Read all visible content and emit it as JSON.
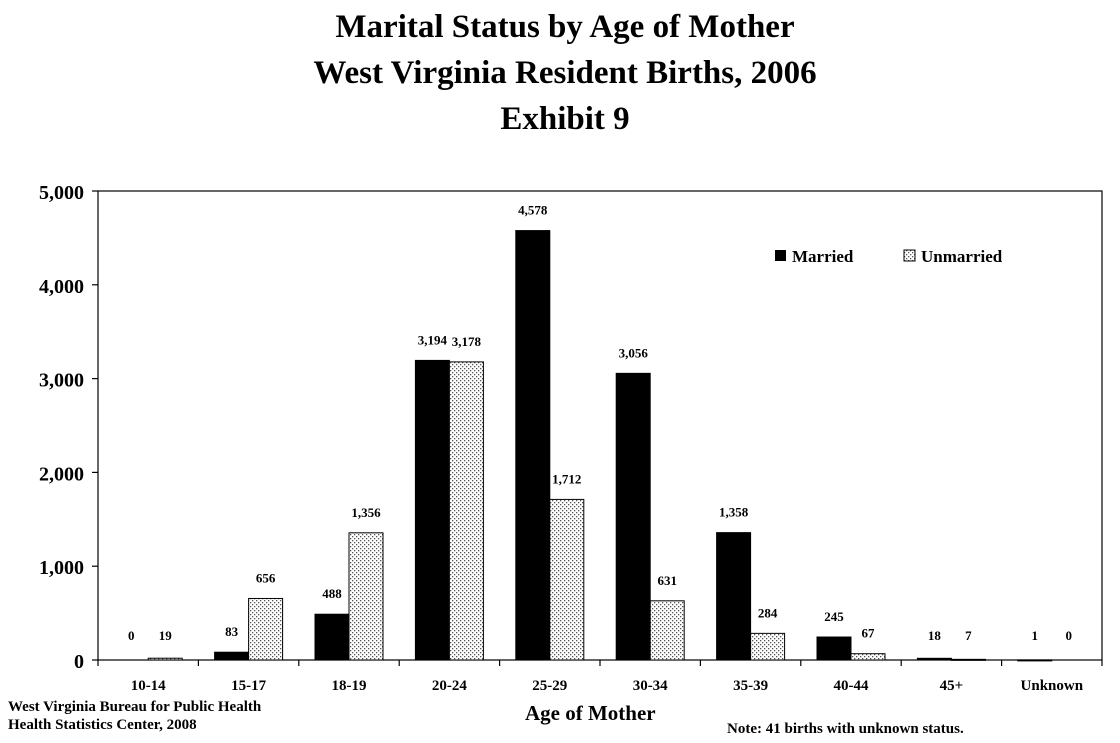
{
  "chart_data": {
    "type": "bar",
    "title": [
      "Marital Status by Age of Mother",
      "West Virginia Resident Births, 2006",
      "Exhibit 9"
    ],
    "xlabel": "Age of Mother",
    "ylabel": "",
    "ylim": [
      0,
      5000
    ],
    "yticks": [
      "0",
      "1,000",
      "2,000",
      "3,000",
      "4,000",
      "5,000"
    ],
    "ytick_values": [
      0,
      1000,
      2000,
      3000,
      4000,
      5000
    ],
    "grid": false,
    "legend_position": "top-right",
    "categories": [
      "10-14",
      "15-17",
      "18-19",
      "20-24",
      "25-29",
      "30-34",
      "35-39",
      "40-44",
      "45+",
      "Unknown"
    ],
    "series": [
      {
        "name": "Married",
        "fill": "#000000",
        "values": [
          0,
          83,
          488,
          3194,
          4578,
          3056,
          1358,
          245,
          18,
          1
        ],
        "labels": [
          "0",
          "83",
          "488",
          "3,194",
          "4,578",
          "3,056",
          "1,358",
          "245",
          "18",
          "1"
        ]
      },
      {
        "name": "Unmarried",
        "fill": "dotted",
        "values": [
          19,
          656,
          1356,
          3178,
          1712,
          631,
          284,
          67,
          7,
          0
        ],
        "labels": [
          "19",
          "656",
          "1,356",
          "3,178",
          "1,712",
          "631",
          "284",
          "67",
          "7",
          "0"
        ]
      }
    ]
  },
  "footer": {
    "source_line1": "West Virginia Bureau for Public Health",
    "source_line2": "Health Statistics Center, 2008",
    "note": "Note:  41 births with unknown status."
  }
}
